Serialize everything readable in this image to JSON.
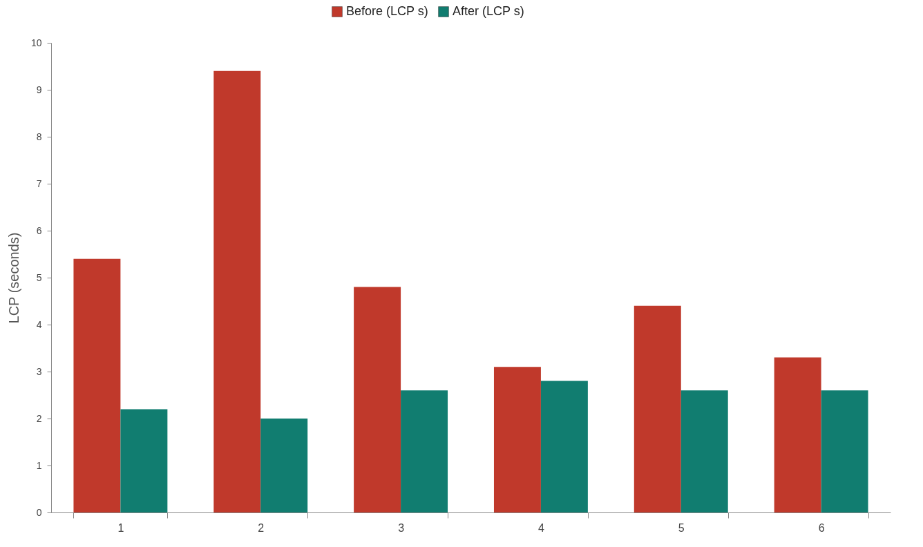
{
  "chart_data": {
    "type": "bar",
    "ylabel": "LCP (seconds)",
    "categories": [
      "1",
      "2",
      "3",
      "4",
      "5",
      "6"
    ],
    "series": [
      {
        "name": "Before (LCP s)",
        "color": "#c0392b",
        "values": [
          5.4,
          9.4,
          4.8,
          3.1,
          4.4,
          3.3
        ]
      },
      {
        "name": "After (LCP s)",
        "color": "#117d70",
        "values": [
          2.2,
          2.0,
          2.6,
          2.8,
          2.6,
          2.6
        ]
      }
    ],
    "ylim": [
      0,
      10
    ],
    "yticks": [
      0,
      1,
      2,
      3,
      4,
      5,
      6,
      7,
      8,
      9,
      10
    ],
    "grid": false,
    "legend": "top"
  }
}
